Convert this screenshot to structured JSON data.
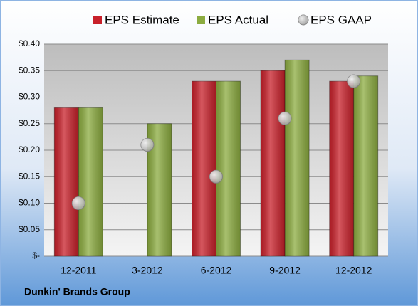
{
  "chart_data": {
    "type": "bar",
    "footnote": "Dunkin' Brands Group",
    "categories": [
      "12-2011",
      "3-2012",
      "6-2012",
      "9-2012",
      "12-2012"
    ],
    "series": [
      {
        "name": "EPS Estimate",
        "color": "#c8202a",
        "values": [
          0.28,
          null,
          0.33,
          0.35,
          0.33
        ]
      },
      {
        "name": "EPS Actual",
        "color": "#8cac40",
        "values": [
          0.28,
          0.25,
          0.33,
          0.37,
          0.34
        ]
      },
      {
        "name": "EPS GAAP",
        "color": "#a6a6a6",
        "marker": "circle",
        "values": [
          0.1,
          0.21,
          0.15,
          0.26,
          0.33
        ]
      }
    ],
    "ylim": [
      0,
      0.4
    ],
    "yticks": [
      {
        "value": 0,
        "label": "$-"
      },
      {
        "value": 0.05,
        "label": "$0.05"
      },
      {
        "value": 0.1,
        "label": "$0.10"
      },
      {
        "value": 0.15,
        "label": "$0.15"
      },
      {
        "value": 0.2,
        "label": "$0.20"
      },
      {
        "value": 0.25,
        "label": "$0.25"
      },
      {
        "value": 0.3,
        "label": "$0.30"
      },
      {
        "value": 0.35,
        "label": "$0.35"
      },
      {
        "value": 0.4,
        "label": "$0.40"
      }
    ],
    "grid": true
  }
}
